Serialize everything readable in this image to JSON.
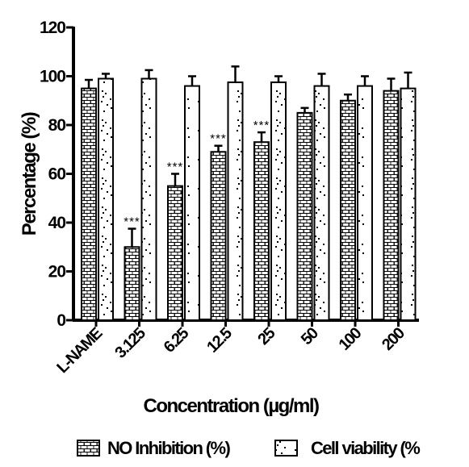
{
  "chart_data": {
    "type": "bar",
    "xlabel": "Concentration (µg/ml)",
    "ylabel": "Percentage (%)",
    "ylim": [
      0,
      120
    ],
    "yticks": [
      "0",
      "20",
      "40",
      "60",
      "80",
      "100",
      "120"
    ],
    "categories": [
      "L-NAME",
      "3.125",
      "6.25",
      "12.5",
      "25",
      "50",
      "100",
      "200"
    ],
    "series": [
      {
        "name": "NO Inhibition (%)",
        "pattern": "brick",
        "values": [
          95,
          30,
          55,
          69,
          73,
          85,
          90,
          94
        ],
        "errors": [
          3.5,
          7.5,
          5,
          2.5,
          4,
          2,
          2.5,
          5
        ],
        "annotations": [
          "",
          "***",
          "***",
          "***",
          "***",
          "",
          "",
          ""
        ]
      },
      {
        "name": "Cell viability (%",
        "pattern": "dots",
        "values": [
          99,
          99,
          96,
          97.5,
          97.5,
          96,
          96,
          95
        ],
        "errors": [
          2,
          3.5,
          4,
          6.5,
          2.5,
          5,
          4,
          6.5
        ],
        "annotations": [
          "",
          "",
          "",
          "",
          "",
          "",
          "",
          ""
        ]
      }
    ],
    "legend_position": "bottom",
    "grid": false
  }
}
